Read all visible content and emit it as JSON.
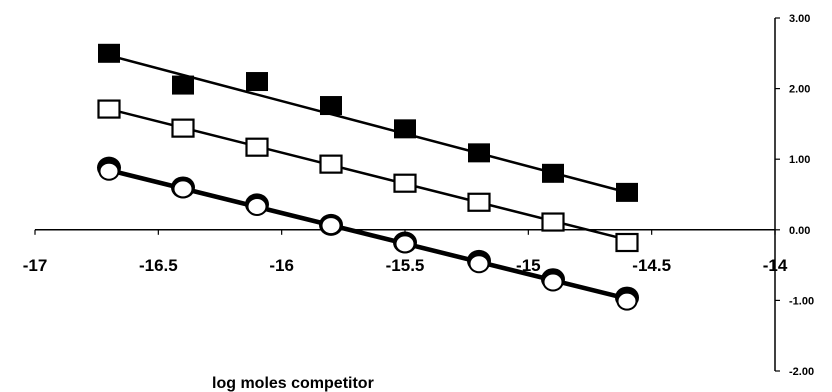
{
  "chart_data": {
    "type": "scatter",
    "title": "",
    "xlabel": "log  moles competitor",
    "ylabel": "",
    "xlim": [
      -17,
      -14
    ],
    "ylim": [
      -2,
      3
    ],
    "grid": false,
    "legend": "none",
    "x_ticks": [
      "-17",
      "-16.5",
      "-16",
      "-15.5",
      "-15",
      "-14.5",
      "-14"
    ],
    "y_ticks": [
      "3.00",
      "2.00",
      "1.00",
      "0.00",
      "-1.00",
      "-2.00"
    ],
    "x": [
      -16.7,
      -16.4,
      -16.1,
      -15.8,
      -15.5,
      -15.2,
      -14.9,
      -14.6
    ],
    "series": [
      {
        "marker": "filled-square",
        "values": [
          2.5,
          2.05,
          2.1,
          1.76,
          1.43,
          1.09,
          0.8,
          0.53
        ],
        "fit": [
          2.47,
          0.53
        ]
      },
      {
        "marker": "open-square",
        "values": [
          1.71,
          1.44,
          1.17,
          0.93,
          0.66,
          0.39,
          0.11,
          -0.18
        ],
        "fit": [
          1.71,
          -0.14
        ]
      },
      {
        "marker": "filled-circle",
        "values": [
          0.88,
          0.6,
          0.36,
          0.07,
          -0.18,
          -0.44,
          -0.7,
          -0.96
        ],
        "fit": [
          0.86,
          -0.96
        ]
      },
      {
        "marker": "open-circle",
        "values": [
          0.83,
          0.58,
          0.33,
          0.06,
          -0.2,
          -0.48,
          -0.74,
          -1.01
        ],
        "fit": [
          0.83,
          -0.99
        ]
      }
    ],
    "colors": {
      "ink": "#000000",
      "background": "#ffffff"
    }
  }
}
